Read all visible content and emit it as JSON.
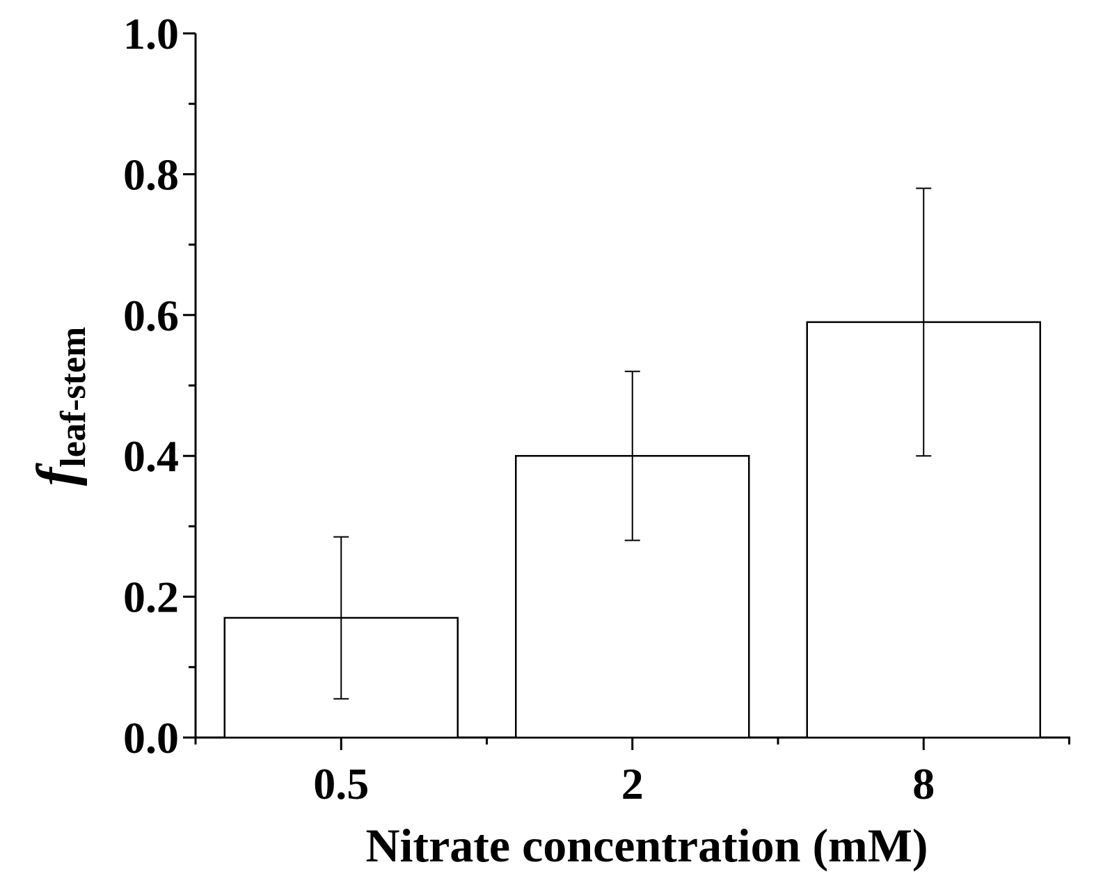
{
  "chart_data": {
    "type": "bar",
    "title": "",
    "categories": [
      "0.5",
      "2",
      "8"
    ],
    "values": [
      0.17,
      0.4,
      0.59
    ],
    "error_low": [
      0.055,
      0.28,
      0.4
    ],
    "error_high": [
      0.285,
      0.52,
      0.78
    ],
    "xlabel": "Nitrate concentration (mM)",
    "ylabel_italic": "f",
    "ylabel_subscript": "leaf-stem",
    "ylim": [
      0.0,
      1.0
    ],
    "yticks": [
      "0.0",
      "0.2",
      "0.4",
      "0.6",
      "0.8",
      "1.0"
    ],
    "colors": {
      "bar_fill": "#ffffff",
      "bar_stroke": "#000000",
      "axis": "#000000"
    }
  }
}
